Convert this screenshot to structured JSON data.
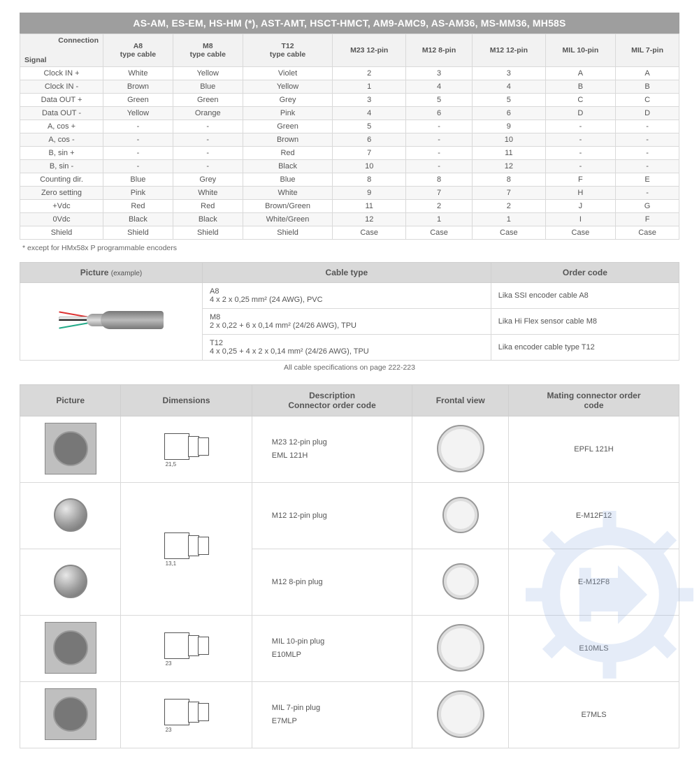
{
  "title_bar": "AS-AM, ES-EM, HS-HM (*), AST-AMT, HSCT-HMCT, AM9-AMC9, AS-AM36, MS-MM36, MH58S",
  "footnote": "* except for HMx58x P programmable encoders",
  "signal_table": {
    "header_diag_top": "Connection",
    "header_diag_bottom": "Signal",
    "columns": [
      "A8\ntype cable",
      "M8\ntype cable",
      "T12\ntype cable",
      "M23 12-pin",
      "M12 8-pin",
      "M12 12-pin",
      "MIL 10-pin",
      "MIL 7-pin"
    ],
    "rows": [
      [
        "Clock IN +",
        "White",
        "Yellow",
        "Violet",
        "2",
        "3",
        "3",
        "A",
        "A"
      ],
      [
        "Clock IN -",
        "Brown",
        "Blue",
        "Yellow",
        "1",
        "4",
        "4",
        "B",
        "B"
      ],
      [
        "Data OUT +",
        "Green",
        "Green",
        "Grey",
        "3",
        "5",
        "5",
        "C",
        "C"
      ],
      [
        "Data OUT -",
        "Yellow",
        "Orange",
        "Pink",
        "4",
        "6",
        "6",
        "D",
        "D"
      ],
      [
        "A, cos +",
        "-",
        "-",
        "Green",
        "5",
        "-",
        "9",
        "-",
        "-"
      ],
      [
        "A, cos -",
        "-",
        "-",
        "Brown",
        "6",
        "-",
        "10",
        "-",
        "-"
      ],
      [
        "B, sin +",
        "-",
        "-",
        "Red",
        "7",
        "-",
        "11",
        "-",
        "-"
      ],
      [
        "B, sin -",
        "-",
        "-",
        "Black",
        "10",
        "-",
        "12",
        "-",
        "-"
      ],
      [
        "Counting dir.",
        "Blue",
        "Grey",
        "Blue",
        "8",
        "8",
        "8",
        "F",
        "E"
      ],
      [
        "Zero setting",
        "Pink",
        "White",
        "White",
        "9",
        "7",
        "7",
        "H",
        "-"
      ],
      [
        "+Vdc",
        "Red",
        "Red",
        "Brown/Green",
        "11",
        "2",
        "2",
        "J",
        "G"
      ],
      [
        "0Vdc",
        "Black",
        "Black",
        "White/Green",
        "12",
        "1",
        "1",
        "I",
        "F"
      ],
      [
        "Shield",
        "Shield",
        "Shield",
        "Shield",
        "Case",
        "Case",
        "Case",
        "Case",
        "Case"
      ]
    ]
  },
  "cable_table": {
    "headers": {
      "picture": "Picture",
      "picture_sub": "(example)",
      "cable_type": "Cable type",
      "order_code": "Order code"
    },
    "rows": [
      {
        "type_line1": "A8",
        "type_line2": "4 x 2 x 0,25 mm² (24 AWG), PVC",
        "order": "Lika SSI encoder cable A8"
      },
      {
        "type_line1": "M8",
        "type_line2": "2 x 0,22 + 6 x 0,14 mm² (24/26 AWG), TPU",
        "order": "Lika Hi Flex sensor cable M8"
      },
      {
        "type_line1": "T12",
        "type_line2": "4 x 0,25 + 4 x 2 x 0,14 mm² (24/26 AWG), TPU",
        "order": "Lika encoder cable type T12"
      }
    ],
    "note": "All cable specifications on page 222-223"
  },
  "connector_table": {
    "headers": {
      "picture": "Picture",
      "dimensions": "Dimensions",
      "description": "Description\nConnector order code",
      "frontal": "Frontal view",
      "mating": "Mating connector order\ncode"
    },
    "rows": [
      {
        "desc1": "M23 12-pin plug",
        "desc2": "EML 121H",
        "mating": "EPFL 121H",
        "pic": "sq-big",
        "front": "big",
        "dim": "big",
        "dim_w": "21,5"
      },
      {
        "desc1": "M12 12-pin plug",
        "desc2": "",
        "mating": "E-M12F12",
        "pic": "round-med",
        "front": "med",
        "dim": "med",
        "dim_w": "13,1",
        "dim_span": 2
      },
      {
        "desc1": "M12 8-pin plug",
        "desc2": "",
        "mating": "E-M12F8",
        "pic": "round-med",
        "front": "med",
        "dim": "skip"
      },
      {
        "desc1": "MIL 10-pin plug",
        "desc2": "E10MLP",
        "mating": "E10MLS",
        "pic": "sq-big",
        "front": "big",
        "dim": "big",
        "dim_w": "23"
      },
      {
        "desc1": "MIL 7-pin plug",
        "desc2": "E7MLP",
        "mating": "E7MLS",
        "pic": "sq-big",
        "front": "big",
        "dim": "big",
        "dim_w": "23"
      }
    ]
  },
  "colors": {
    "title_bg": "#9e9e9e",
    "header_bg": "#d9d9d9",
    "border": "#d9d9d9",
    "text": "#555555",
    "watermark": "#9bb7e4"
  }
}
